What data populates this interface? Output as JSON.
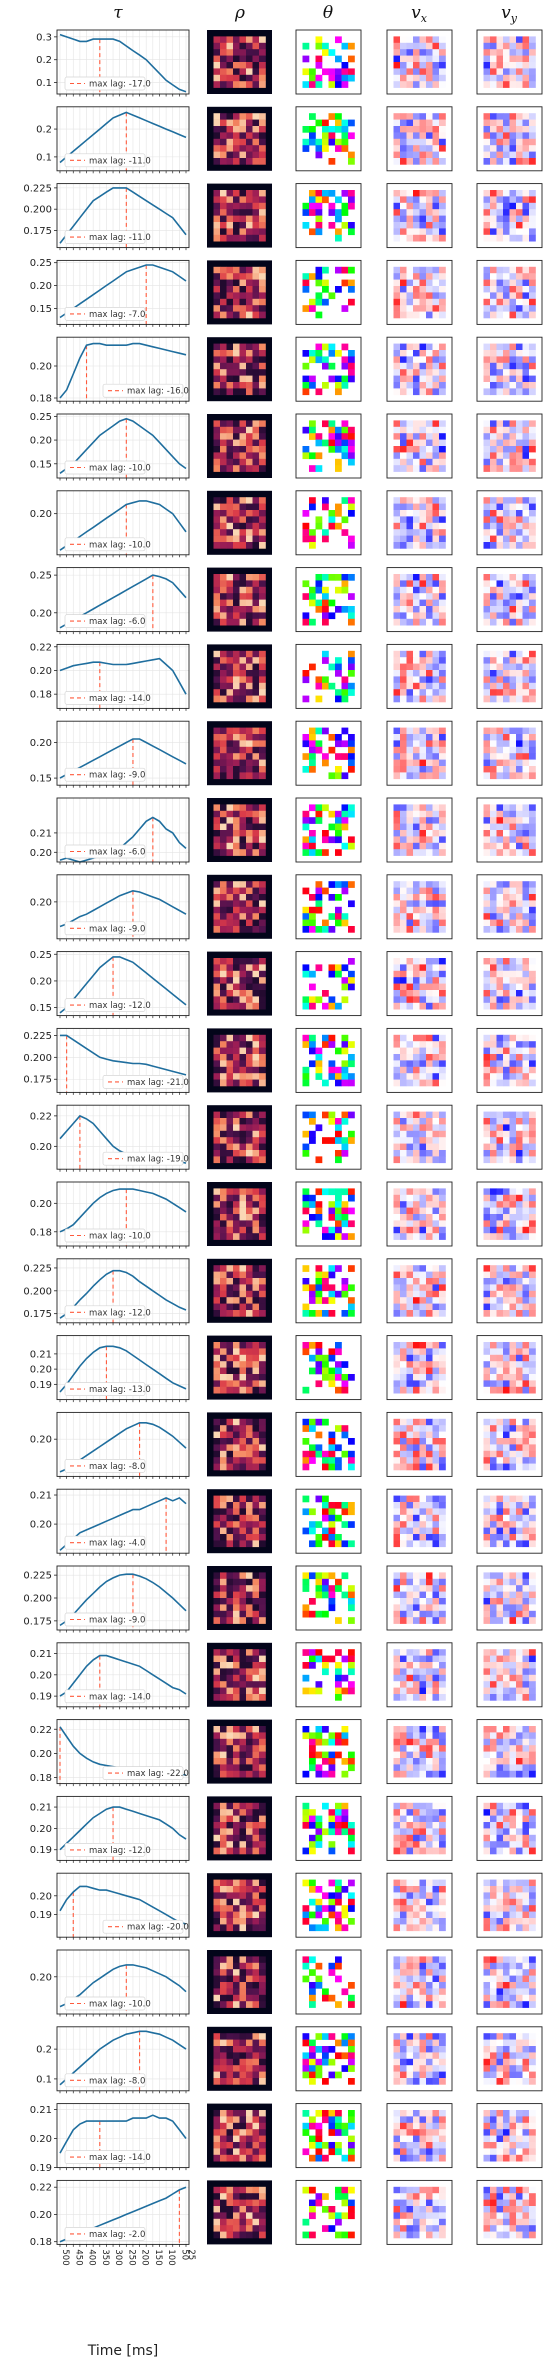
{
  "column_titles": [
    {
      "symbol": "τ"
    },
    {
      "symbol": "ρ"
    },
    {
      "symbol": "θ"
    },
    {
      "symbol": "v",
      "subscript": "x"
    },
    {
      "symbol": "v",
      "subscript": "y"
    }
  ],
  "colors": {
    "curve": "#1f6e9e",
    "lag_line": "#ff5a3c",
    "rho_colormap": "rocket",
    "theta_colormap": "hsv",
    "velocity_colormap": "bwr"
  },
  "chart_data": {
    "type": "line",
    "xlabel": "Time [ms]",
    "x_ticks": [
      "500",
      "475",
      "450",
      "425",
      "400",
      "375",
      "350",
      "325",
      "300",
      "275",
      "250",
      "225",
      "200",
      "175",
      "150",
      "125",
      "100",
      "75",
      "50",
      "25"
    ],
    "x_tick_labels_shown": [
      "500",
      "450",
      "400",
      "350",
      "300",
      "250",
      "200",
      "150",
      "100",
      "50",
      "25"
    ],
    "grid": true,
    "legend_entry_prefix": "max lag: ",
    "panels": [
      {
        "lag_label": "-17.0",
        "peak_index": 6,
        "ylim": [
          0.05,
          0.33
        ],
        "yticks": [
          "0.1",
          "0.2",
          "0.3"
        ],
        "y": [
          0.31,
          0.3,
          0.29,
          0.28,
          0.28,
          0.29,
          0.29,
          0.29,
          0.29,
          0.28,
          0.26,
          0.24,
          0.22,
          0.2,
          0.17,
          0.14,
          0.11,
          0.09,
          0.07,
          0.06
        ]
      },
      {
        "lag_label": "-11.0",
        "peak_index": 10,
        "ylim": [
          0.05,
          0.28
        ],
        "yticks": [
          "0.1",
          "0.2"
        ],
        "y": [
          0.08,
          0.1,
          0.12,
          0.14,
          0.16,
          0.18,
          0.2,
          0.22,
          0.24,
          0.25,
          0.26,
          0.25,
          0.24,
          0.23,
          0.22,
          0.21,
          0.2,
          0.19,
          0.18,
          0.17
        ]
      },
      {
        "lag_label": "-11.0",
        "peak_index": 10,
        "ylim": [
          0.155,
          0.23
        ],
        "yticks": [
          "0.175",
          "0.200",
          "0.225"
        ],
        "y": [
          0.16,
          0.17,
          0.18,
          0.19,
          0.2,
          0.21,
          0.215,
          0.22,
          0.225,
          0.225,
          0.225,
          0.22,
          0.215,
          0.21,
          0.205,
          0.2,
          0.195,
          0.19,
          0.18,
          0.17
        ]
      },
      {
        "lag_label": "-7.0",
        "peak_index": 13,
        "ylim": [
          0.115,
          0.255
        ],
        "yticks": [
          "0.15",
          "0.20",
          "0.25"
        ],
        "y": [
          0.13,
          0.14,
          0.15,
          0.16,
          0.17,
          0.18,
          0.19,
          0.2,
          0.21,
          0.22,
          0.23,
          0.235,
          0.24,
          0.245,
          0.245,
          0.24,
          0.235,
          0.23,
          0.22,
          0.21
        ]
      },
      {
        "lag_label": "-16.0",
        "peak_index": 4,
        "ylim": [
          0.178,
          0.218
        ],
        "yticks": [
          "0.18",
          "0.20"
        ],
        "y": [
          0.18,
          0.185,
          0.195,
          0.205,
          0.213,
          0.214,
          0.214,
          0.213,
          0.213,
          0.213,
          0.213,
          0.214,
          0.214,
          0.213,
          0.212,
          0.211,
          0.21,
          0.209,
          0.208,
          0.207
        ]
      },
      {
        "lag_label": "-10.0",
        "peak_index": 10,
        "ylim": [
          0.12,
          0.255
        ],
        "yticks": [
          "0.15",
          "0.20",
          "0.25"
        ],
        "y": [
          0.13,
          0.14,
          0.15,
          0.165,
          0.18,
          0.195,
          0.21,
          0.22,
          0.23,
          0.24,
          0.245,
          0.24,
          0.23,
          0.22,
          0.21,
          0.195,
          0.18,
          0.165,
          0.15,
          0.14
        ]
      },
      {
        "lag_label": "-10.0",
        "peak_index": 10,
        "ylim": [
          0.155,
          0.225
        ],
        "yticks": [
          "0.20"
        ],
        "y": [
          0.16,
          0.165,
          0.17,
          0.175,
          0.18,
          0.185,
          0.19,
          0.195,
          0.2,
          0.205,
          0.21,
          0.212,
          0.214,
          0.214,
          0.212,
          0.21,
          0.205,
          0.2,
          0.19,
          0.18
        ]
      },
      {
        "lag_label": "-6.0",
        "peak_index": 14,
        "ylim": [
          0.175,
          0.26
        ],
        "yticks": [
          "0.20",
          "0.25"
        ],
        "y": [
          0.18,
          0.185,
          0.19,
          0.195,
          0.2,
          0.205,
          0.21,
          0.215,
          0.22,
          0.225,
          0.23,
          0.235,
          0.24,
          0.245,
          0.25,
          0.248,
          0.245,
          0.24,
          0.23,
          0.22
        ]
      },
      {
        "lag_label": "-14.0",
        "peak_index": 6,
        "ylim": [
          0.168,
          0.222
        ],
        "yticks": [
          "0.18",
          "0.20",
          "0.22"
        ],
        "y": [
          0.2,
          0.202,
          0.204,
          0.205,
          0.206,
          0.207,
          0.207,
          0.206,
          0.205,
          0.205,
          0.205,
          0.206,
          0.207,
          0.208,
          0.209,
          0.21,
          0.205,
          0.2,
          0.19,
          0.18
        ]
      },
      {
        "lag_label": "-9.0",
        "peak_index": 11,
        "ylim": [
          0.14,
          0.23
        ],
        "yticks": [
          "0.15",
          "0.20"
        ],
        "y": [
          0.15,
          0.155,
          0.16,
          0.165,
          0.17,
          0.175,
          0.18,
          0.185,
          0.19,
          0.195,
          0.2,
          0.205,
          0.205,
          0.2,
          0.195,
          0.19,
          0.185,
          0.18,
          0.175,
          0.17
        ]
      },
      {
        "lag_label": "-6.0",
        "peak_index": 14,
        "ylim": [
          0.195,
          0.228
        ],
        "yticks": [
          "0.20",
          "0.21"
        ],
        "y": [
          0.196,
          0.197,
          0.196,
          0.195,
          0.196,
          0.197,
          0.198,
          0.199,
          0.2,
          0.202,
          0.205,
          0.208,
          0.212,
          0.216,
          0.218,
          0.216,
          0.212,
          0.21,
          0.205,
          0.202
        ]
      },
      {
        "lag_label": "-9.0",
        "peak_index": 11,
        "ylim": [
          0.17,
          0.222
        ],
        "yticks": [
          "0.20"
        ],
        "y": [
          0.18,
          0.182,
          0.185,
          0.188,
          0.19,
          0.193,
          0.196,
          0.199,
          0.202,
          0.205,
          0.207,
          0.209,
          0.208,
          0.206,
          0.204,
          0.202,
          0.199,
          0.196,
          0.193,
          0.19
        ]
      },
      {
        "lag_label": "-12.0",
        "peak_index": 8,
        "ylim": [
          0.135,
          0.255
        ],
        "yticks": [
          "0.15",
          "0.20",
          "0.25"
        ],
        "y": [
          0.14,
          0.15,
          0.165,
          0.18,
          0.195,
          0.21,
          0.225,
          0.235,
          0.245,
          0.245,
          0.24,
          0.235,
          0.225,
          0.215,
          0.205,
          0.195,
          0.185,
          0.175,
          0.165,
          0.155
        ]
      },
      {
        "lag_label": "-21.0",
        "peak_index": 1,
        "ylim": [
          0.16,
          0.233
        ],
        "yticks": [
          "0.175",
          "0.200",
          "0.225"
        ],
        "y": [
          0.225,
          0.225,
          0.22,
          0.215,
          0.21,
          0.205,
          0.2,
          0.198,
          0.196,
          0.195,
          0.194,
          0.193,
          0.193,
          0.192,
          0.19,
          0.188,
          0.186,
          0.184,
          0.182,
          0.18
        ]
      },
      {
        "lag_label": "-19.0",
        "peak_index": 3,
        "ylim": [
          0.185,
          0.227
        ],
        "yticks": [
          "0.20",
          "0.22"
        ],
        "y": [
          0.205,
          0.21,
          0.215,
          0.22,
          0.218,
          0.215,
          0.21,
          0.205,
          0.2,
          0.197,
          0.195,
          0.193,
          0.191,
          0.19,
          0.189,
          0.188,
          0.189,
          0.19,
          0.19,
          0.189
        ]
      },
      {
        "lag_label": "-10.0",
        "peak_index": 10,
        "ylim": [
          0.17,
          0.215
        ],
        "yticks": [
          "0.18",
          "0.20"
        ],
        "y": [
          0.18,
          0.182,
          0.185,
          0.19,
          0.195,
          0.2,
          0.204,
          0.207,
          0.209,
          0.21,
          0.21,
          0.21,
          0.209,
          0.208,
          0.207,
          0.205,
          0.203,
          0.2,
          0.197,
          0.194
        ]
      },
      {
        "lag_label": "-12.0",
        "peak_index": 8,
        "ylim": [
          0.165,
          0.235
        ],
        "yticks": [
          "0.175",
          "0.200",
          "0.225"
        ],
        "y": [
          0.17,
          0.175,
          0.182,
          0.19,
          0.197,
          0.205,
          0.212,
          0.218,
          0.222,
          0.222,
          0.22,
          0.216,
          0.21,
          0.205,
          0.2,
          0.195,
          0.19,
          0.186,
          0.182,
          0.179
        ]
      },
      {
        "lag_label": "-13.0",
        "peak_index": 7,
        "ylim": [
          0.18,
          0.222
        ],
        "yticks": [
          "0.19",
          "0.20",
          "0.21"
        ],
        "y": [
          0.185,
          0.19,
          0.196,
          0.202,
          0.207,
          0.211,
          0.214,
          0.215,
          0.215,
          0.214,
          0.212,
          0.209,
          0.206,
          0.203,
          0.2,
          0.197,
          0.194,
          0.191,
          0.189,
          0.187
        ]
      },
      {
        "lag_label": "-8.0",
        "peak_index": 12,
        "ylim": [
          0.175,
          0.218
        ],
        "yticks": [
          "0.20"
        ],
        "y": [
          0.178,
          0.18,
          0.183,
          0.186,
          0.189,
          0.192,
          0.195,
          0.198,
          0.201,
          0.204,
          0.207,
          0.209,
          0.211,
          0.211,
          0.21,
          0.208,
          0.205,
          0.202,
          0.198,
          0.194
        ]
      },
      {
        "lag_label": "-4.0",
        "peak_index": 16,
        "ylim": [
          0.19,
          0.212
        ],
        "yticks": [
          "0.20",
          "0.21"
        ],
        "y": [
          0.191,
          0.193,
          0.195,
          0.197,
          0.198,
          0.199,
          0.2,
          0.201,
          0.202,
          0.203,
          0.204,
          0.205,
          0.205,
          0.206,
          0.207,
          0.208,
          0.209,
          0.208,
          0.209,
          0.207
        ]
      },
      {
        "lag_label": "-9.0",
        "peak_index": 11,
        "ylim": [
          0.165,
          0.235
        ],
        "yticks": [
          "0.175",
          "0.200",
          "0.225"
        ],
        "y": [
          0.17,
          0.175,
          0.182,
          0.19,
          0.198,
          0.205,
          0.212,
          0.218,
          0.222,
          0.225,
          0.226,
          0.226,
          0.224,
          0.221,
          0.217,
          0.212,
          0.206,
          0.2,
          0.193,
          0.186
        ]
      },
      {
        "lag_label": "-14.0",
        "peak_index": 6,
        "ylim": [
          0.185,
          0.215
        ],
        "yticks": [
          "0.19",
          "0.20",
          "0.21"
        ],
        "y": [
          0.19,
          0.192,
          0.196,
          0.2,
          0.204,
          0.207,
          0.209,
          0.209,
          0.208,
          0.207,
          0.206,
          0.205,
          0.204,
          0.202,
          0.2,
          0.198,
          0.196,
          0.194,
          0.193,
          0.191
        ]
      },
      {
        "lag_label": "-22.0",
        "peak_index": 0,
        "ylim": [
          0.175,
          0.228
        ],
        "yticks": [
          "0.18",
          "0.20",
          "0.22"
        ],
        "y": [
          0.222,
          0.214,
          0.206,
          0.2,
          0.196,
          0.193,
          0.191,
          0.19,
          0.189,
          0.188,
          0.187,
          0.186,
          0.186,
          0.185,
          0.185,
          0.184,
          0.184,
          0.183,
          0.183,
          0.182
        ]
      },
      {
        "lag_label": "-12.0",
        "peak_index": 8,
        "ylim": [
          0.185,
          0.215
        ],
        "yticks": [
          "0.19",
          "0.20",
          "0.21"
        ],
        "y": [
          0.19,
          0.193,
          0.196,
          0.199,
          0.202,
          0.205,
          0.207,
          0.209,
          0.21,
          0.21,
          0.209,
          0.208,
          0.207,
          0.206,
          0.205,
          0.204,
          0.202,
          0.2,
          0.197,
          0.195
        ]
      },
      {
        "lag_label": "-20.0",
        "peak_index": 2,
        "ylim": [
          0.178,
          0.212
        ],
        "yticks": [
          "0.19",
          "0.20"
        ],
        "y": [
          0.192,
          0.198,
          0.202,
          0.205,
          0.205,
          0.204,
          0.203,
          0.203,
          0.202,
          0.201,
          0.2,
          0.199,
          0.198,
          0.196,
          0.194,
          0.192,
          0.19,
          0.188,
          0.186,
          0.185
        ]
      },
      {
        "lag_label": "-10.0",
        "peak_index": 10,
        "ylim": [
          0.175,
          0.218
        ],
        "yticks": [
          "0.20"
        ],
        "y": [
          0.18,
          0.182,
          0.185,
          0.188,
          0.192,
          0.196,
          0.199,
          0.202,
          0.205,
          0.207,
          0.208,
          0.208,
          0.207,
          0.206,
          0.204,
          0.202,
          0.2,
          0.197,
          0.194,
          0.19
        ]
      },
      {
        "lag_label": "-8.0",
        "peak_index": 12,
        "ylim": [
          0.06,
          0.275
        ],
        "yticks": [
          "0.1",
          "0.2"
        ],
        "y": [
          0.08,
          0.1,
          0.12,
          0.14,
          0.16,
          0.18,
          0.2,
          0.215,
          0.23,
          0.24,
          0.25,
          0.255,
          0.26,
          0.26,
          0.255,
          0.25,
          0.24,
          0.23,
          0.215,
          0.2
        ]
      },
      {
        "lag_label": "-14.0",
        "peak_index": 6,
        "ylim": [
          0.19,
          0.212
        ],
        "yticks": [
          "0.19",
          "0.20",
          "0.21"
        ],
        "y": [
          0.195,
          0.199,
          0.203,
          0.205,
          0.206,
          0.206,
          0.206,
          0.206,
          0.206,
          0.206,
          0.206,
          0.207,
          0.207,
          0.207,
          0.208,
          0.207,
          0.207,
          0.206,
          0.203,
          0.2
        ]
      },
      {
        "lag_label": "-2.0",
        "peak_index": 18,
        "ylim": [
          0.178,
          0.225
        ],
        "yticks": [
          "0.18",
          "0.20",
          "0.22"
        ],
        "y": [
          0.18,
          0.182,
          0.184,
          0.186,
          0.188,
          0.19,
          0.192,
          0.194,
          0.196,
          0.198,
          0.2,
          0.202,
          0.204,
          0.206,
          0.208,
          0.21,
          0.212,
          0.215,
          0.218,
          0.22
        ]
      }
    ]
  }
}
